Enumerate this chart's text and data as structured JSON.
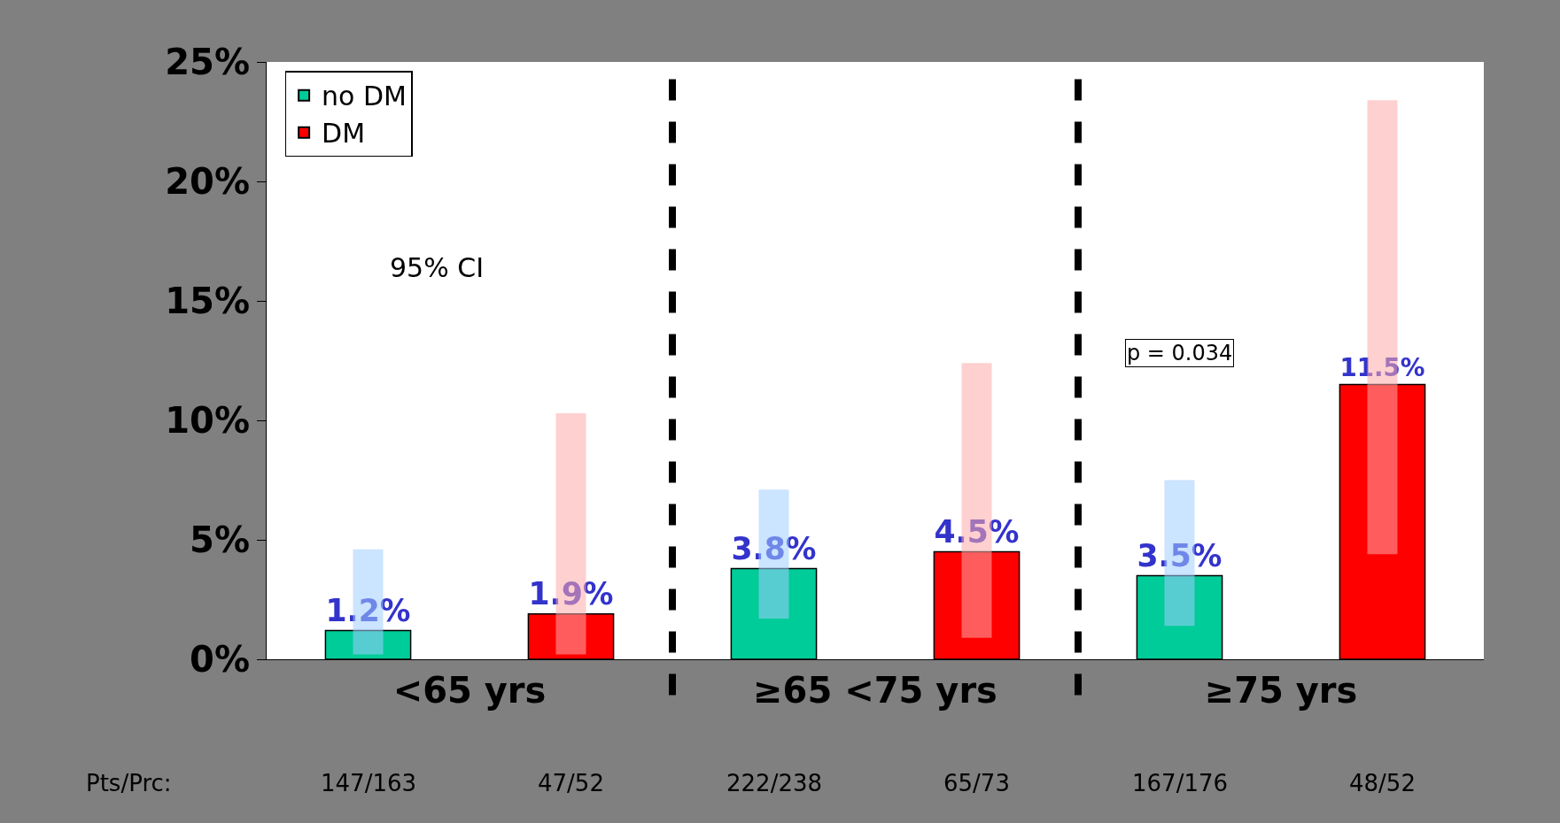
{
  "chart_data": {
    "type": "bar",
    "categories": [
      "<65 yrs",
      "≥65 <75 yrs",
      "≥75 yrs"
    ],
    "series": [
      {
        "name": "no DM",
        "color": "#00cc99",
        "values": [
          1.2,
          3.8,
          3.5
        ],
        "value_labels": [
          "1.2%",
          "3.8%",
          "3.5%"
        ],
        "errors": [
          [
            0.2,
            4.6
          ],
          [
            1.7,
            7.1
          ],
          [
            1.4,
            7.5
          ]
        ]
      },
      {
        "name": "DM",
        "color": "#ff0000",
        "values": [
          1.9,
          4.5,
          11.5
        ],
        "value_labels": [
          "1.9%",
          "4.5%",
          "11.5%"
        ],
        "errors": [
          [
            0.2,
            10.3
          ],
          [
            0.9,
            12.4
          ],
          [
            4.4,
            23.4
          ]
        ]
      }
    ],
    "ylim": [
      0,
      25
    ],
    "yticks": [
      {
        "value": 0,
        "label": "0%"
      },
      {
        "value": 5,
        "label": "5%"
      },
      {
        "value": 10,
        "label": "10%"
      },
      {
        "value": 15,
        "label": "15%"
      },
      {
        "value": 20,
        "label": "20%"
      },
      {
        "value": 25,
        "label": "25%"
      }
    ],
    "annotations": [
      "Pts/Prc:",
      "147/163",
      "47/52",
      "222/238",
      "65/73",
      "167/176",
      "48/52",
      "95% CI",
      "p = 0.034"
    ],
    "legend": "top left"
  }
}
